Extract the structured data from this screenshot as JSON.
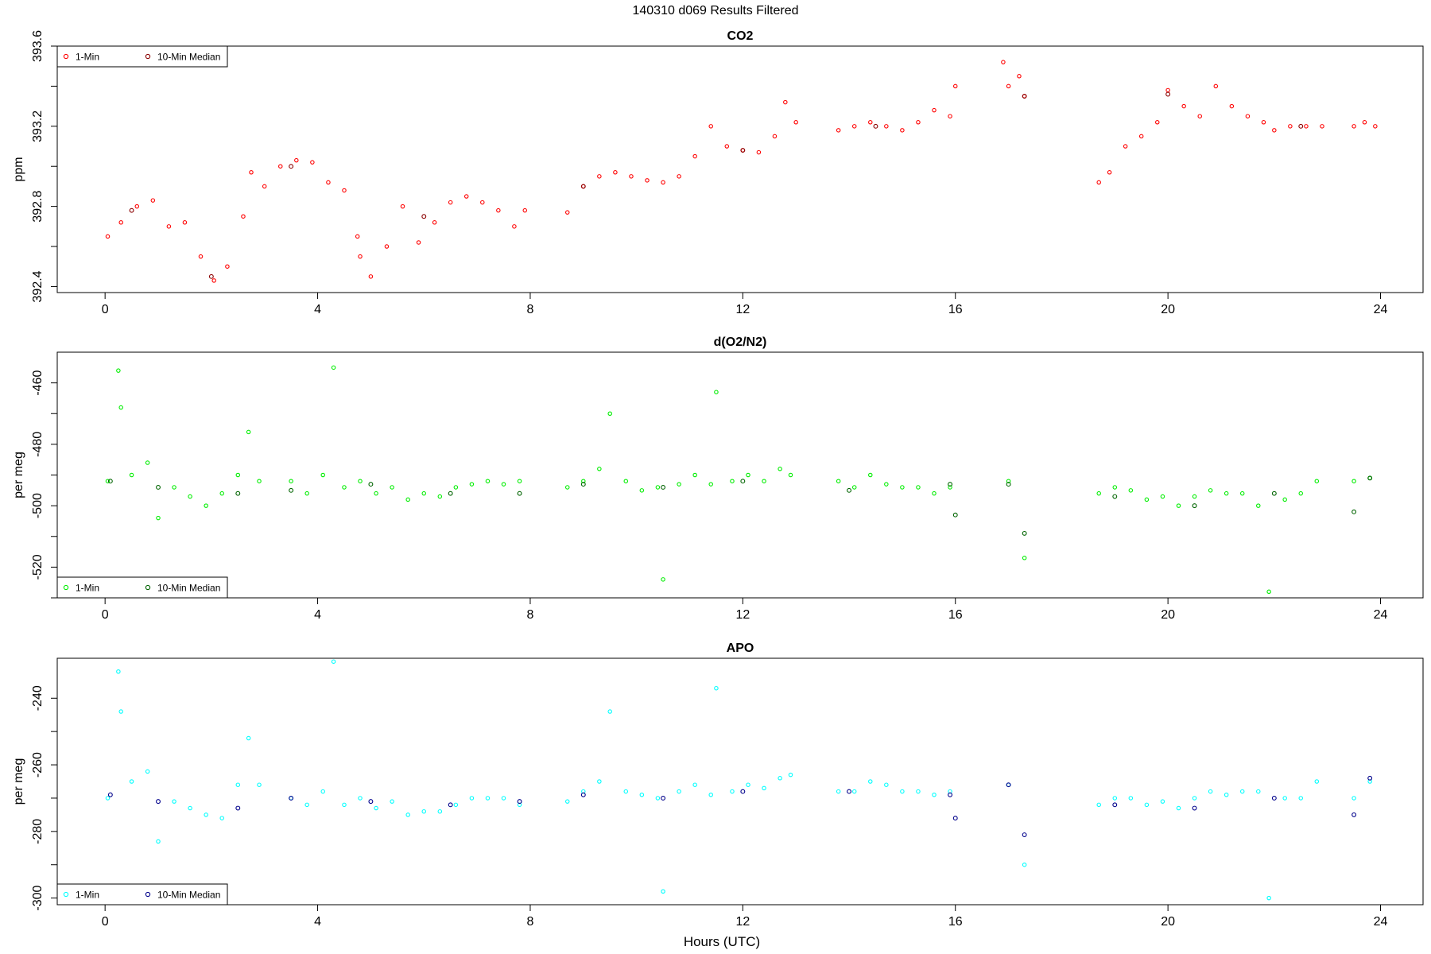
{
  "figure": {
    "title": "140310   d069   Results Filtered",
    "xlabel": "Hours (UTC)"
  },
  "chart_data": [
    {
      "type": "scatter",
      "title": "CO2",
      "ylabel": "ppm",
      "xlim": [
        -0.9,
        24.8
      ],
      "ylim": [
        392.37,
        393.6
      ],
      "xticks": [
        0,
        4,
        8,
        12,
        16,
        20,
        24
      ],
      "yticks": [
        392.4,
        392.8,
        393.2,
        393.6
      ],
      "ytick_labels": [
        "392.4",
        "392.8",
        "393.2",
        "393.6"
      ],
      "legend": {
        "position": "top-left",
        "entries": [
          "1-Min",
          "10-Min Median"
        ]
      },
      "series": [
        {
          "name": "1-Min",
          "color": "#ff0000",
          "x": [
            0.05,
            0.3,
            0.6,
            0.9,
            1.2,
            1.5,
            1.8,
            2.05,
            2.3,
            2.6,
            2.75,
            3.0,
            3.3,
            3.6,
            3.9,
            4.2,
            4.5,
            4.75,
            4.8,
            5.0,
            5.3,
            5.6,
            5.9,
            6.2,
            6.5,
            6.8,
            7.1,
            7.4,
            7.7,
            7.9,
            8.7,
            9.0,
            9.3,
            9.6,
            9.9,
            10.2,
            10.5,
            10.8,
            11.1,
            11.4,
            11.7,
            12.0,
            12.3,
            12.6,
            12.8,
            13.0,
            13.8,
            14.1,
            14.4,
            14.7,
            15.0,
            15.3,
            15.6,
            15.9,
            16.0,
            16.9,
            17.0,
            17.2,
            17.3,
            18.7,
            18.9,
            19.2,
            19.5,
            19.8,
            20.0,
            20.3,
            20.6,
            20.9,
            21.2,
            21.5,
            21.8,
            22.0,
            22.3,
            22.6,
            22.9,
            23.5,
            23.7,
            23.9
          ],
          "y": [
            392.65,
            392.72,
            392.8,
            392.83,
            392.7,
            392.72,
            392.55,
            392.43,
            392.5,
            392.75,
            392.97,
            392.9,
            393.0,
            393.03,
            393.02,
            392.92,
            392.88,
            392.65,
            392.55,
            392.45,
            392.6,
            392.8,
            392.62,
            392.72,
            392.82,
            392.85,
            392.82,
            392.78,
            392.7,
            392.78,
            392.77,
            392.9,
            392.95,
            392.97,
            392.95,
            392.93,
            392.92,
            392.95,
            393.05,
            393.2,
            393.1,
            393.08,
            393.07,
            393.15,
            393.32,
            393.22,
            393.18,
            393.2,
            393.22,
            393.2,
            393.18,
            393.22,
            393.28,
            393.25,
            393.4,
            393.52,
            393.4,
            393.45,
            393.35,
            392.92,
            392.97,
            393.1,
            393.15,
            393.22,
            393.38,
            393.3,
            393.25,
            393.4,
            393.3,
            393.25,
            393.22,
            393.18,
            393.2,
            393.2,
            393.2,
            393.2,
            393.22,
            393.2
          ],
          "marker": "open-circle"
        },
        {
          "name": "10-Min Median",
          "color": "#8b0000",
          "x": [
            0.5,
            2.0,
            3.5,
            6.0,
            9.0,
            12.0,
            14.5,
            17.3,
            20.0,
            22.5
          ],
          "y": [
            392.78,
            392.45,
            393.0,
            392.75,
            392.9,
            393.08,
            393.2,
            393.35,
            393.36,
            393.2
          ],
          "marker": "open-circle"
        }
      ]
    },
    {
      "type": "scatter",
      "title": "d(O2/N2)",
      "ylabel": "per meg",
      "xlim": [
        -0.9,
        24.8
      ],
      "ylim": [
        -530,
        -450
      ],
      "xticks": [
        0,
        4,
        8,
        12,
        16,
        20,
        24
      ],
      "yticks": [
        -460,
        -480,
        -500,
        -520
      ],
      "ytick_labels": [
        "-460",
        "-480",
        "-500",
        "-520"
      ],
      "legend": {
        "position": "bottom-left",
        "entries": [
          "1-Min",
          "10-Min Median"
        ]
      },
      "series": [
        {
          "name": "1-Min",
          "color": "#00ee00",
          "x": [
            0.05,
            0.25,
            0.3,
            0.5,
            0.8,
            1.0,
            1.3,
            1.6,
            1.9,
            2.2,
            2.5,
            2.7,
            2.9,
            3.5,
            3.8,
            4.1,
            4.3,
            4.5,
            4.8,
            5.1,
            5.4,
            5.7,
            6.0,
            6.3,
            6.6,
            6.9,
            7.2,
            7.5,
            7.8,
            8.7,
            9.0,
            9.3,
            9.5,
            9.8,
            10.1,
            10.4,
            10.5,
            10.8,
            11.1,
            11.4,
            11.5,
            11.8,
            12.1,
            12.4,
            12.7,
            12.9,
            13.8,
            14.1,
            14.4,
            14.7,
            15.0,
            15.3,
            15.6,
            15.9,
            17.0,
            17.3,
            18.7,
            19.0,
            19.3,
            19.6,
            19.9,
            20.2,
            20.5,
            20.8,
            21.1,
            21.4,
            21.7,
            21.9,
            22.2,
            22.5,
            22.8,
            23.5,
            23.8
          ],
          "y": [
            -492,
            -456,
            -468,
            -490,
            -486,
            -504,
            -494,
            -497,
            -500,
            -496,
            -490,
            -476,
            -492,
            -492,
            -496,
            -490,
            -455,
            -494,
            -492,
            -496,
            -494,
            -498,
            -496,
            -497,
            -494,
            -493,
            -492,
            -493,
            -492,
            -494,
            -492,
            -488,
            -470,
            -492,
            -495,
            -494,
            -524,
            -493,
            -490,
            -493,
            -463,
            -492,
            -490,
            -492,
            -488,
            -490,
            -492,
            -494,
            -490,
            -493,
            -494,
            -494,
            -496,
            -494,
            -492,
            -517,
            -496,
            -494,
            -495,
            -498,
            -497,
            -500,
            -497,
            -495,
            -496,
            -496,
            -500,
            -528,
            -498,
            -496,
            -492,
            -492,
            -491
          ],
          "marker": "open-circle"
        },
        {
          "name": "10-Min Median",
          "color": "#006400",
          "x": [
            0.1,
            1.0,
            2.5,
            3.5,
            5.0,
            6.5,
            7.8,
            9.0,
            10.5,
            12.0,
            14.0,
            15.9,
            16.0,
            17.0,
            17.3,
            19.0,
            20.5,
            22.0,
            23.5,
            23.8
          ],
          "y": [
            -492,
            -494,
            -496,
            -495,
            -493,
            -496,
            -496,
            -493,
            -494,
            -492,
            -495,
            -493,
            -503,
            -493,
            -509,
            -497,
            -500,
            -496,
            -502,
            -491
          ],
          "marker": "open-circle"
        }
      ]
    },
    {
      "type": "scatter",
      "title": "APO",
      "ylabel": "per meg",
      "xlim": [
        -0.9,
        24.8
      ],
      "ylim": [
        -302,
        -228
      ],
      "xticks": [
        0,
        4,
        8,
        12,
        16,
        20,
        24
      ],
      "yticks": [
        -240,
        -260,
        -280,
        -300
      ],
      "ytick_labels": [
        "-240",
        "-260",
        "-280",
        "-300"
      ],
      "legend": {
        "position": "bottom-left",
        "entries": [
          "1-Min",
          "10-Min Median"
        ]
      },
      "series": [
        {
          "name": "1-Min",
          "color": "#00ffff",
          "x": [
            0.05,
            0.25,
            0.3,
            0.5,
            0.8,
            1.0,
            1.3,
            1.6,
            1.9,
            2.2,
            2.5,
            2.7,
            2.9,
            3.5,
            3.8,
            4.1,
            4.3,
            4.5,
            4.8,
            5.1,
            5.4,
            5.7,
            6.0,
            6.3,
            6.6,
            6.9,
            7.2,
            7.5,
            7.8,
            8.7,
            9.0,
            9.3,
            9.5,
            9.8,
            10.1,
            10.4,
            10.5,
            10.8,
            11.1,
            11.4,
            11.5,
            11.8,
            12.1,
            12.4,
            12.7,
            12.9,
            13.8,
            14.1,
            14.4,
            14.7,
            15.0,
            15.3,
            15.6,
            15.9,
            17.0,
            17.3,
            18.7,
            19.0,
            19.3,
            19.6,
            19.9,
            20.2,
            20.5,
            20.8,
            21.1,
            21.4,
            21.7,
            21.9,
            22.2,
            22.5,
            22.8,
            23.5,
            23.8
          ],
          "y": [
            -270,
            -232,
            -244,
            -265,
            -262,
            -283,
            -271,
            -273,
            -275,
            -276,
            -266,
            -252,
            -266,
            -270,
            -272,
            -268,
            -229,
            -272,
            -270,
            -273,
            -271,
            -275,
            -274,
            -274,
            -272,
            -270,
            -270,
            -270,
            -272,
            -271,
            -268,
            -265,
            -244,
            -268,
            -269,
            -270,
            -298,
            -268,
            -266,
            -269,
            -237,
            -268,
            -266,
            -267,
            -264,
            -263,
            -268,
            -268,
            -265,
            -266,
            -268,
            -268,
            -269,
            -268,
            -266,
            -290,
            -272,
            -270,
            -270,
            -272,
            -271,
            -273,
            -270,
            -268,
            -269,
            -268,
            -268,
            -300,
            -270,
            -270,
            -265,
            -270,
            -265
          ],
          "marker": "open-circle"
        },
        {
          "name": "10-Min Median",
          "color": "#00008b",
          "x": [
            0.1,
            1.0,
            2.5,
            3.5,
            5.0,
            6.5,
            7.8,
            9.0,
            10.5,
            12.0,
            14.0,
            15.9,
            16.0,
            17.0,
            17.3,
            19.0,
            20.5,
            22.0,
            23.5,
            23.8
          ],
          "y": [
            -269,
            -271,
            -273,
            -270,
            -271,
            -272,
            -271,
            -269,
            -270,
            -268,
            -268,
            -269,
            -276,
            -266,
            -281,
            -272,
            -273,
            -270,
            -275,
            -264
          ],
          "marker": "open-circle"
        }
      ]
    }
  ]
}
